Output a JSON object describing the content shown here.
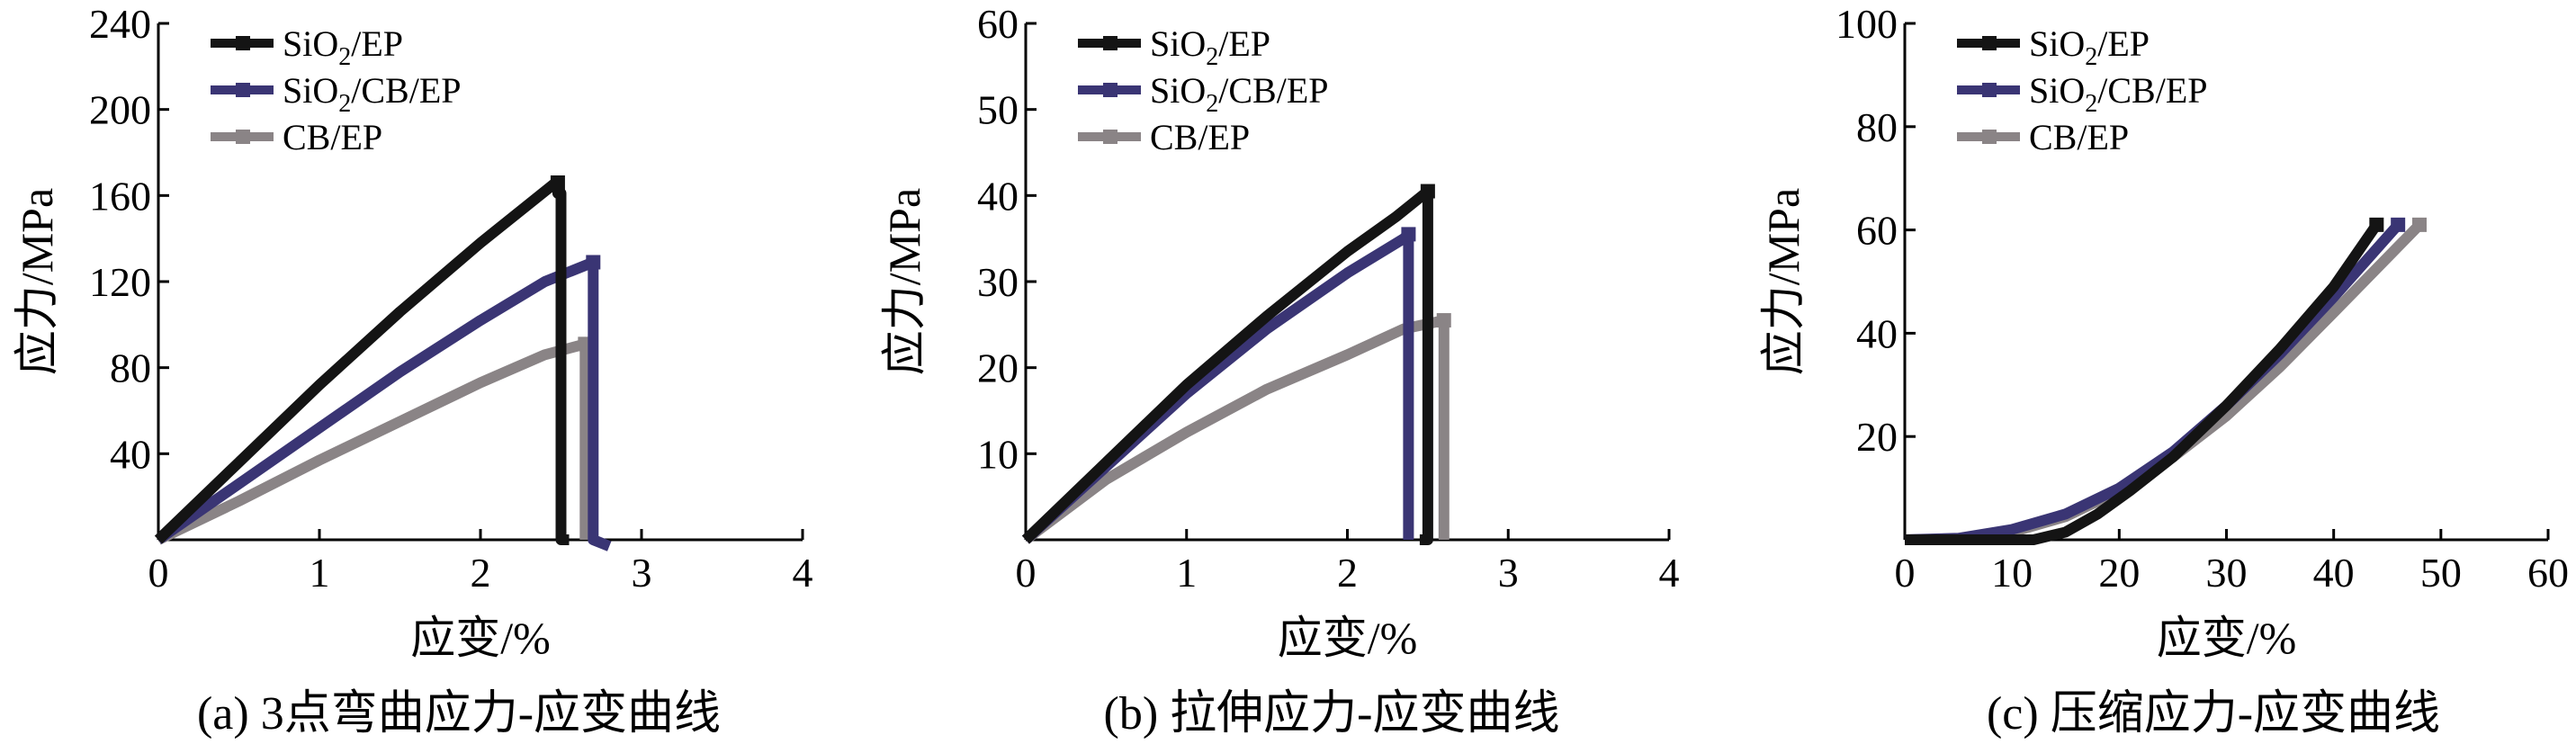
{
  "figure": {
    "captions": [
      "(a) 3点弯曲应力-应变曲线",
      "(b) 拉伸应力-应变曲线",
      "(c) 压缩应力-应变曲线"
    ]
  },
  "colors": {
    "SiO2/EP": "#141414",
    "SiO2/CB/EP": "#3a3574",
    "CB/EP": "#8a8486"
  },
  "chart_data": [
    {
      "type": "line",
      "title": "",
      "xlabel": "应变/%",
      "ylabel": "应力/MPa",
      "xlim": [
        0,
        4
      ],
      "ylim": [
        0,
        240
      ],
      "xticks": [
        "0",
        "1",
        "2",
        "3",
        "4"
      ],
      "yticks": [
        "40",
        "80",
        "120",
        "160",
        "200",
        "240"
      ],
      "legend_position": "top-left",
      "series": [
        {
          "name": "SiO2/EP",
          "legend": {
            "base": "SiO",
            "sub": "2",
            "rest": "/EP"
          },
          "points": [
            [
              0,
              0
            ],
            [
              0.5,
              36
            ],
            [
              1.0,
              72
            ],
            [
              1.5,
              106
            ],
            [
              2.0,
              138
            ],
            [
              2.3,
              156
            ],
            [
              2.45,
              165
            ],
            [
              2.48,
              166
            ],
            [
              2.48,
              161
            ],
            [
              2.5,
              161
            ],
            [
              2.5,
              0
            ],
            [
              2.55,
              0
            ]
          ]
        },
        {
          "name": "SiO2/CB/EP",
          "legend": {
            "base": "SiO",
            "sub": "2",
            "rest": "/CB/EP"
          },
          "points": [
            [
              0,
              0
            ],
            [
              0.5,
              26
            ],
            [
              1.0,
              52
            ],
            [
              1.5,
              78
            ],
            [
              2.0,
              102
            ],
            [
              2.4,
              120
            ],
            [
              2.7,
              129
            ],
            [
              2.7,
              0
            ],
            [
              2.8,
              -3
            ]
          ]
        },
        {
          "name": "CB/EP",
          "legend": {
            "base": "CB/EP",
            "sub": "",
            "rest": ""
          },
          "points": [
            [
              0,
              0
            ],
            [
              0.5,
              18
            ],
            [
              1.0,
              37
            ],
            [
              1.5,
              55
            ],
            [
              2.0,
              73
            ],
            [
              2.4,
              86
            ],
            [
              2.65,
              91
            ],
            [
              2.65,
              0
            ]
          ]
        }
      ]
    },
    {
      "type": "line",
      "title": "",
      "xlabel": "应变/%",
      "ylabel": "应力/MPa",
      "xlim": [
        0,
        4
      ],
      "ylim": [
        0,
        60
      ],
      "xticks": [
        "0",
        "1",
        "2",
        "3",
        "4"
      ],
      "yticks": [
        "10",
        "20",
        "30",
        "40",
        "50",
        "60"
      ],
      "legend_position": "top-left",
      "series": [
        {
          "name": "SiO2/EP",
          "legend": {
            "base": "SiO",
            "sub": "2",
            "rest": "/EP"
          },
          "points": [
            [
              0,
              0
            ],
            [
              0.5,
              9
            ],
            [
              1.0,
              18
            ],
            [
              1.5,
              26
            ],
            [
              2.0,
              33.5
            ],
            [
              2.3,
              37.5
            ],
            [
              2.5,
              40.5
            ],
            [
              2.5,
              0
            ],
            [
              2.45,
              0
            ]
          ]
        },
        {
          "name": "SiO2/CB/EP",
          "legend": {
            "base": "SiO",
            "sub": "2",
            "rest": "/CB/EP"
          },
          "points": [
            [
              0,
              0
            ],
            [
              0.5,
              8.5
            ],
            [
              1.0,
              17
            ],
            [
              1.5,
              24.5
            ],
            [
              2.0,
              31
            ],
            [
              2.35,
              35
            ],
            [
              2.38,
              35.5
            ],
            [
              2.38,
              0
            ]
          ]
        },
        {
          "name": "CB/EP",
          "legend": {
            "base": "CB/EP",
            "sub": "",
            "rest": ""
          },
          "points": [
            [
              0,
              0
            ],
            [
              0.5,
              7
            ],
            [
              1.0,
              12.5
            ],
            [
              1.5,
              17.5
            ],
            [
              2.0,
              21.5
            ],
            [
              2.35,
              24.5
            ],
            [
              2.6,
              25.5
            ],
            [
              2.6,
              0
            ]
          ]
        }
      ]
    },
    {
      "type": "line",
      "title": "",
      "xlabel": "应变/%",
      "ylabel": "应力/MPa",
      "xlim": [
        0,
        60
      ],
      "ylim": [
        0,
        100
      ],
      "xticks": [
        "0",
        "10",
        "20",
        "30",
        "40",
        "50",
        "60"
      ],
      "yticks": [
        "20",
        "40",
        "60",
        "80",
        "100"
      ],
      "legend_position": "top-left",
      "series": [
        {
          "name": "SiO2/EP",
          "legend": {
            "base": "SiO",
            "sub": "2",
            "rest": "/EP"
          },
          "points": [
            [
              0,
              0
            ],
            [
              12,
              0
            ],
            [
              15,
              1.5
            ],
            [
              18,
              5
            ],
            [
              21,
              9.5
            ],
            [
              25,
              16
            ],
            [
              30,
              26
            ],
            [
              35,
              37
            ],
            [
              40,
              49
            ],
            [
              44,
              61
            ]
          ]
        },
        {
          "name": "SiO2/CB/EP",
          "legend": {
            "base": "SiO",
            "sub": "2",
            "rest": "/CB/EP"
          },
          "points": [
            [
              0,
              0
            ],
            [
              5,
              0.3
            ],
            [
              10,
              2
            ],
            [
              15,
              5
            ],
            [
              20,
              10
            ],
            [
              25,
              17
            ],
            [
              30,
              26
            ],
            [
              35,
              36
            ],
            [
              40,
              47
            ],
            [
              46,
              61
            ]
          ]
        },
        {
          "name": "CB/EP",
          "legend": {
            "base": "CB/EP",
            "sub": "",
            "rest": ""
          },
          "points": [
            [
              0,
              0
            ],
            [
              5,
              0.2
            ],
            [
              10,
              1.5
            ],
            [
              15,
              4.5
            ],
            [
              20,
              9.5
            ],
            [
              25,
              16
            ],
            [
              30,
              24
            ],
            [
              35,
              33.5
            ],
            [
              40,
              44
            ],
            [
              48,
              61
            ]
          ]
        }
      ]
    }
  ]
}
